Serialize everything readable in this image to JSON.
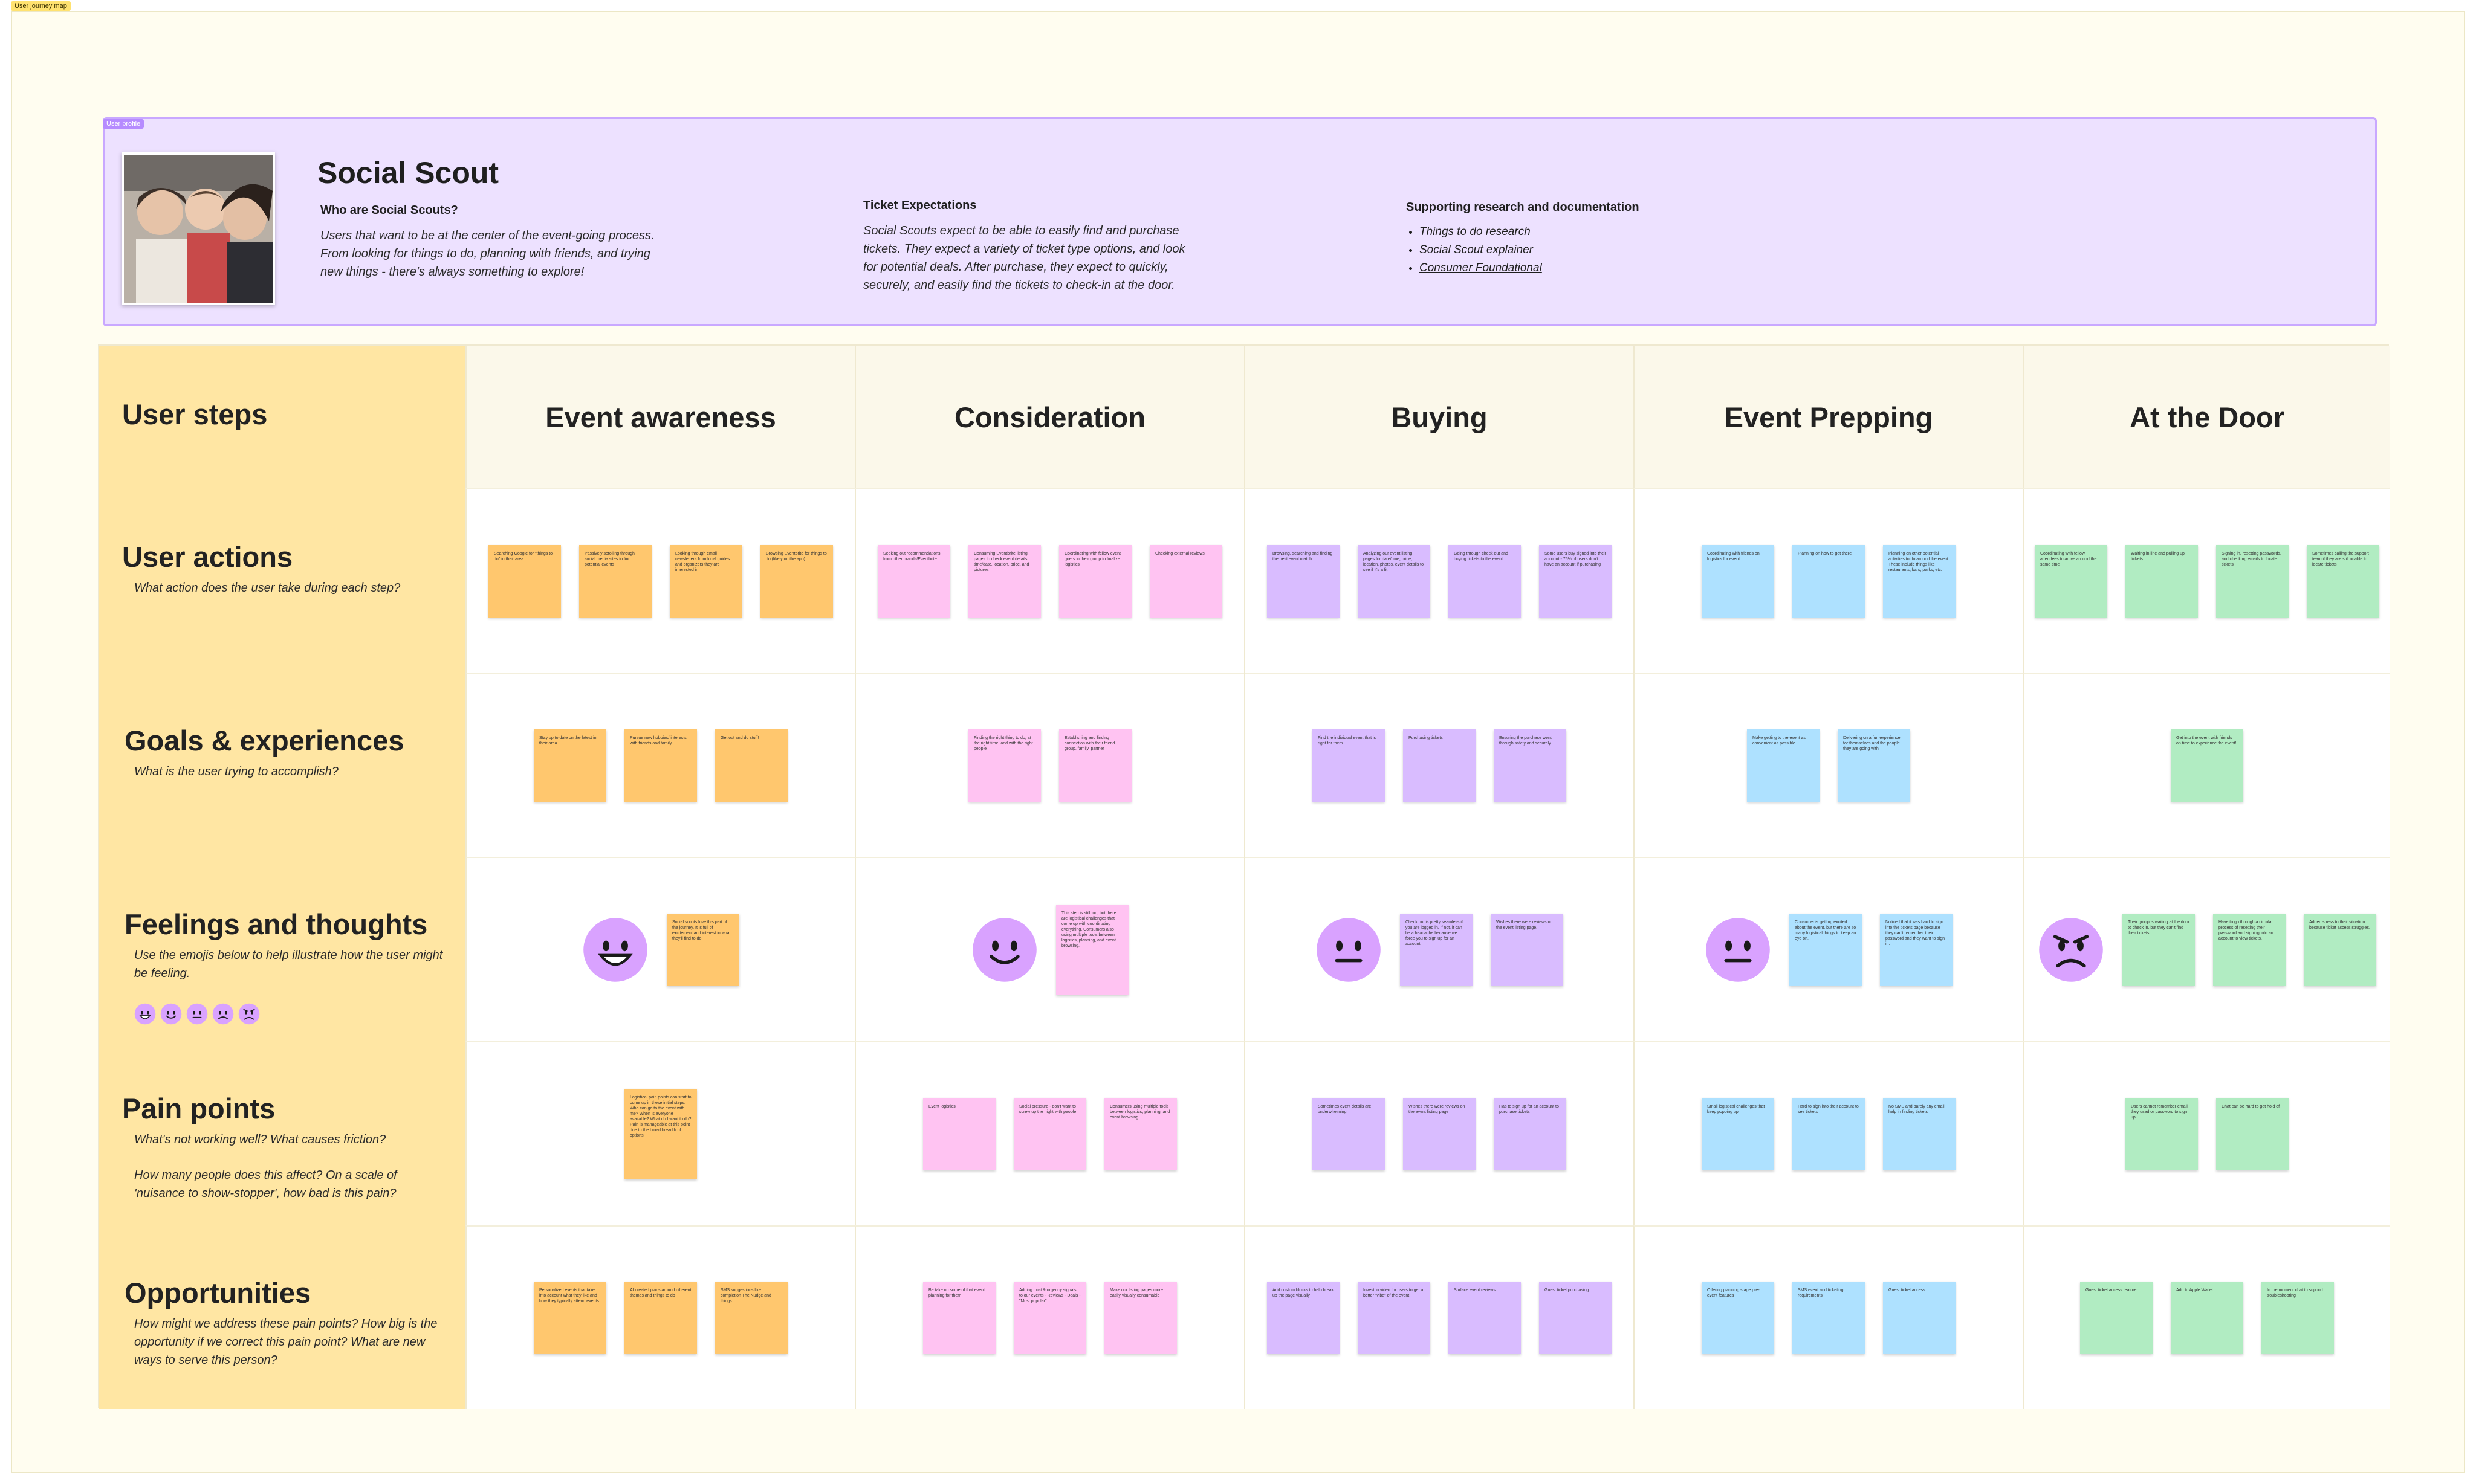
{
  "frame_label": "User journey map",
  "persona": {
    "tag": "User profile",
    "name": "Social Scout",
    "who_title": "Who are Social Scouts?",
    "who_body": "Users that want to be at the center of the event-going process. From looking for things to do, planning with friends, and trying new things - there's always something to explore!",
    "ticket_title": "Ticket Expectations",
    "ticket_body": "Social Scouts expect to be able to easily find and purchase tickets. They expect a variety of ticket type options, and look for potential deals. After purchase, they expect to quickly, securely, and easily find the tickets to check-in at the door.",
    "research_title": "Supporting research and documentation",
    "links": [
      "Things to do research",
      "Social Scout explainer",
      "Consumer Foundational"
    ]
  },
  "columns": {
    "header": "User steps",
    "stages": [
      "Event awareness",
      "Consideration",
      "Buying",
      "Event Prepping",
      "At the Door"
    ]
  },
  "rows": {
    "actions": {
      "title": "User actions",
      "sub": "What action does the user take during each step?"
    },
    "goals": {
      "title": "Goals & experiences",
      "sub": "What is the user trying to accomplish?"
    },
    "feelings": {
      "title": "Feelings and thoughts",
      "sub": "Use the emojis below to help illustrate how the user might be feeling."
    },
    "pain": {
      "title": "Pain points",
      "sub1": "What's not working well? What causes friction?",
      "sub2": "How many people does this affect? On a scale of 'nuisance to show-stopper', how bad is this pain?"
    },
    "opps": {
      "title": "Opportunities",
      "sub": "How might we address these pain points? How big is the opportunity if we correct this pain point? What are new ways to serve this person?"
    }
  },
  "colors": {
    "orange": "#ffc76e",
    "pink": "#ffc3f2",
    "purple": "#d9bcff",
    "blue": "#aee1ff",
    "green": "#b1ecc2",
    "rowhead": "#ffe6a3",
    "persona_bg": "#ede1ff"
  },
  "notes": {
    "actions": [
      [
        "Searching Google for \"things to do\" in their area",
        "Passively scrolling through social media sites to find potential events",
        "Looking through email newsletters from local guides and organizers they are interested in",
        "Browsing Eventbrite for things to do (likely on the app)"
      ],
      [
        "Seeking out recommendations from other brands/Eventbrite",
        "Consuming Eventbrite listing pages to check event details, time/date, location, price, and pictures",
        "Coordinating with fellow event goers in their group to finalize logistics",
        "Checking external reviews"
      ],
      [
        "Browsing, searching and finding the best event match",
        "Analyzing our event listing pages for date/time, price, location, photos, event details to see if it's a fit",
        "Going through check out and buying tickets to the event",
        "Some users buy signed into their account - 75% of users don't have an account if purchasing"
      ],
      [
        "Coordinating with friends on logistics for event",
        "Planning on how to get there",
        "Planning on other potential activities to do around the event. These include things like restaurants, bars, parks, etc."
      ],
      [
        "Coordinating with fellow attendees to arrive around the same time",
        "Waiting in line and pulling up tickets",
        "Signing in, resetting passwords, and checking emails to locate tickets",
        "Sometimes calling the support team if they are still unable to locate tickets"
      ]
    ],
    "goals": [
      [
        "Stay up to date on the latest in their area",
        "Pursue new hobbies/ interests with friends and family",
        "Get out and do stuff!"
      ],
      [
        "Finding the right thing to do, at the right time, and with the right people",
        "Establishing and finding connection with their friend group, family, partner"
      ],
      [
        "Find the individual event that is right for them",
        "Purchasing tickets",
        "Ensuring the purchase went through safely and securely"
      ],
      [
        "Make getting to the event as convenient as possible",
        "Delivering on a fun experience for themselves and the people they are going with"
      ],
      [
        "Get into the event with friends on time to experience the event!"
      ]
    ],
    "feelings": [
      [
        "Social scouts love this part of the journey. It is full of excitement and interest in what they'll find to do."
      ],
      [
        "This step is still fun, but there are logistical challenges that come up with coordinating everything. Consumers also using multiple tools between logistics, planning, and event browsing."
      ],
      [
        "Check out is pretty seamless if you are logged in. If not, it can be a headache because we force you to sign up for an account.",
        "Wishes there were reviews on the event listing page."
      ],
      [
        "Consumer is getting excited about the event, but there are so many logistical things to keep an eye on.",
        "Noticed that it was hard to sign into the tickets page because they can't remember their password and they want to sign in."
      ],
      [
        "Their group is waiting at the door to check in, but they can't find their tickets.",
        "Have to go through a circular process of resetting their password and signing into an account to view tickets.",
        "Added stress to their situation because ticket access struggles."
      ]
    ],
    "pain": [
      [
        "Logistical pain points can start to come up in these initial steps. Who can go to the event with me? When is everyone available? What do I want to do? Pain is manageable at this point due to the broad breadth of options."
      ],
      [
        "Event logistics",
        "Social pressure - don't want to screw up the night with people",
        "Consumers using multiple tools between logistics, planning, and event browsing"
      ],
      [
        "Sometimes event details are underwhelming",
        "Wishes there were reviews on the event listing page",
        "Has to sign up for an account to purchase tickets"
      ],
      [
        "Small logistical challenges that keep popping up",
        "Hard to sign into their account to see tickets",
        "No SMS and barely any email help in finding tickets"
      ],
      [
        "Users cannot remember email they used or password to sign up",
        "Chat can be hard to get hold of"
      ]
    ],
    "opps": [
      [
        "Personalized events that take into account what they like and how they typically attend events",
        "AI created plans around different themes and things to do",
        "SMS suggestions like completion The Nudge and things"
      ],
      [
        "Be take on some of that event planning for them",
        "Adding trust & urgency signals to our events - Reviews - Deals - \"Most popular\"",
        "Make our listing pages more easily visually consumable"
      ],
      [
        "Add custom blocks to help break up the page visually",
        "Invest in video for users to get a better \"vibe\" of the event",
        "Surface event reviews",
        "Guest ticket purchasing"
      ],
      [
        "Offering planning stage pre-event features",
        "SMS event and ticketing requirements",
        "Guest ticket access"
      ],
      [
        "Guest ticket access feature",
        "Add to Apple Wallet",
        "In the moment chat to support troubleshooting"
      ]
    ]
  },
  "moods": [
    "very-happy",
    "happy",
    "neutral",
    "neutral",
    "angry"
  ],
  "legend_moods": [
    "very-happy",
    "happy",
    "neutral",
    "sad",
    "angry"
  ]
}
